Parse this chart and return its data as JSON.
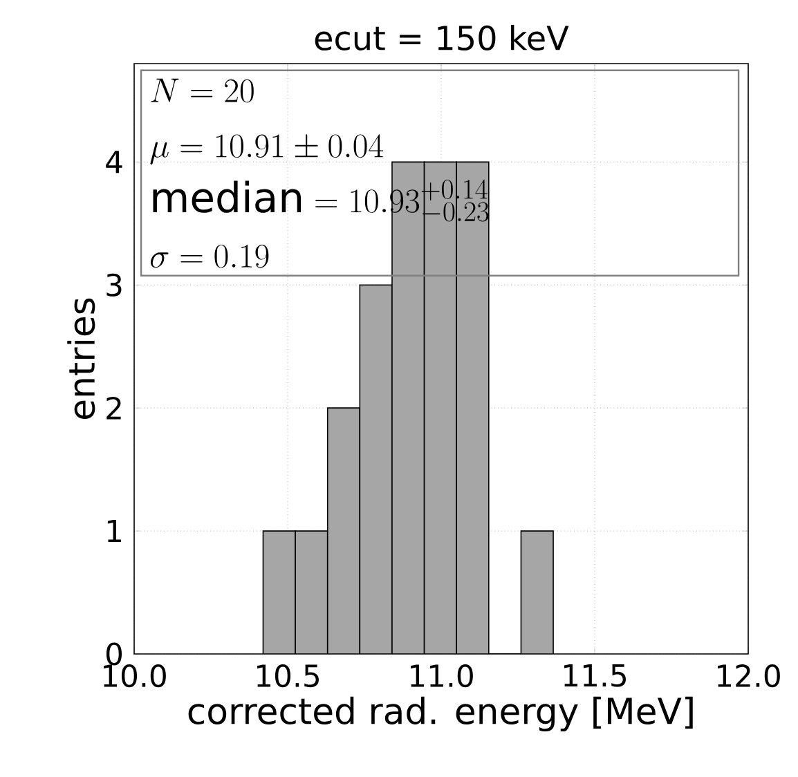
{
  "chart_data": {
    "type": "histogram",
    "title": "ecut = 150 keV",
    "xlabel": "corrected rad. energy [MeV]",
    "ylabel": "entries",
    "bins": [
      10.42,
      10.525,
      10.63,
      10.735,
      10.84,
      10.945,
      11.05,
      11.155,
      11.26,
      11.365
    ],
    "values": [
      1,
      1,
      2,
      3,
      4,
      4,
      4,
      0,
      1
    ],
    "color": "#a6a6a6",
    "xlim": [
      10.0,
      12.0
    ],
    "ylim": [
      0,
      4.8
    ],
    "xticks": [
      {
        "value": 10.0,
        "label": "10.0"
      },
      {
        "value": 10.5,
        "label": "10.5"
      },
      {
        "value": 11.0,
        "label": "11.0"
      },
      {
        "value": 11.5,
        "label": "11.5"
      },
      {
        "value": 12.0,
        "label": "12.0"
      }
    ],
    "yticks": [
      0,
      1,
      2,
      3,
      4
    ],
    "grid": true,
    "annotations": [
      "N = 20",
      "\\mu = 10.91 \\pm 0.04",
      "\\mathrm{median} = 10.93^{+0.14}_{-0.23}",
      "\\sigma = 0.19"
    ]
  }
}
